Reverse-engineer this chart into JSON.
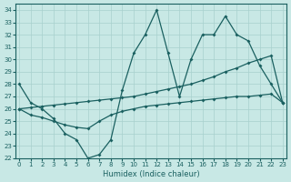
{
  "background_color": "#c8e8e5",
  "grid_color": "#a8d0ce",
  "line_color": "#1a6060",
  "xlabel": "Humidex (Indice chaleur)",
  "ylim": [
    22,
    34.5
  ],
  "xlim": [
    -0.3,
    23.3
  ],
  "yticks": [
    22,
    23,
    24,
    25,
    26,
    27,
    28,
    29,
    30,
    31,
    32,
    33,
    34
  ],
  "xticks": [
    0,
    1,
    2,
    3,
    4,
    5,
    6,
    7,
    8,
    9,
    10,
    11,
    12,
    13,
    14,
    15,
    16,
    17,
    18,
    19,
    20,
    21,
    22,
    23
  ],
  "line1_x": [
    0,
    1,
    2,
    3,
    4,
    5,
    6,
    7,
    8,
    9,
    10,
    11,
    12,
    13,
    14,
    15,
    16,
    17,
    18,
    19,
    20,
    21,
    22,
    23
  ],
  "line1_y": [
    28,
    26.5,
    26,
    25.2,
    24,
    23.5,
    22,
    22.3,
    23.5,
    27.5,
    30.5,
    32,
    34,
    30.5,
    27,
    30,
    32,
    32,
    33.5,
    32,
    31.5,
    29.5,
    28,
    26.5
  ],
  "line2_x": [
    0,
    1,
    2,
    3,
    4,
    5,
    6,
    7,
    8,
    9,
    10,
    11,
    12,
    13,
    14,
    15,
    16,
    17,
    18,
    19,
    20,
    21,
    22,
    23
  ],
  "line2_y": [
    26.0,
    26.1,
    26.2,
    26.3,
    26.4,
    26.5,
    26.6,
    26.7,
    26.8,
    26.9,
    27.0,
    27.2,
    27.4,
    27.6,
    27.8,
    28.0,
    28.3,
    28.6,
    29.0,
    29.3,
    29.7,
    30.0,
    30.3,
    26.5
  ],
  "line3_x": [
    0,
    1,
    2,
    3,
    4,
    5,
    6,
    7,
    8,
    9,
    10,
    11,
    12,
    13,
    14,
    15,
    16,
    17,
    18,
    19,
    20,
    21,
    22,
    23
  ],
  "line3_y": [
    26.0,
    25.5,
    25.3,
    25.0,
    24.7,
    24.5,
    24.4,
    25.0,
    25.5,
    25.8,
    26.0,
    26.2,
    26.3,
    26.4,
    26.5,
    26.6,
    26.7,
    26.8,
    26.9,
    27.0,
    27.0,
    27.1,
    27.2,
    26.5
  ]
}
